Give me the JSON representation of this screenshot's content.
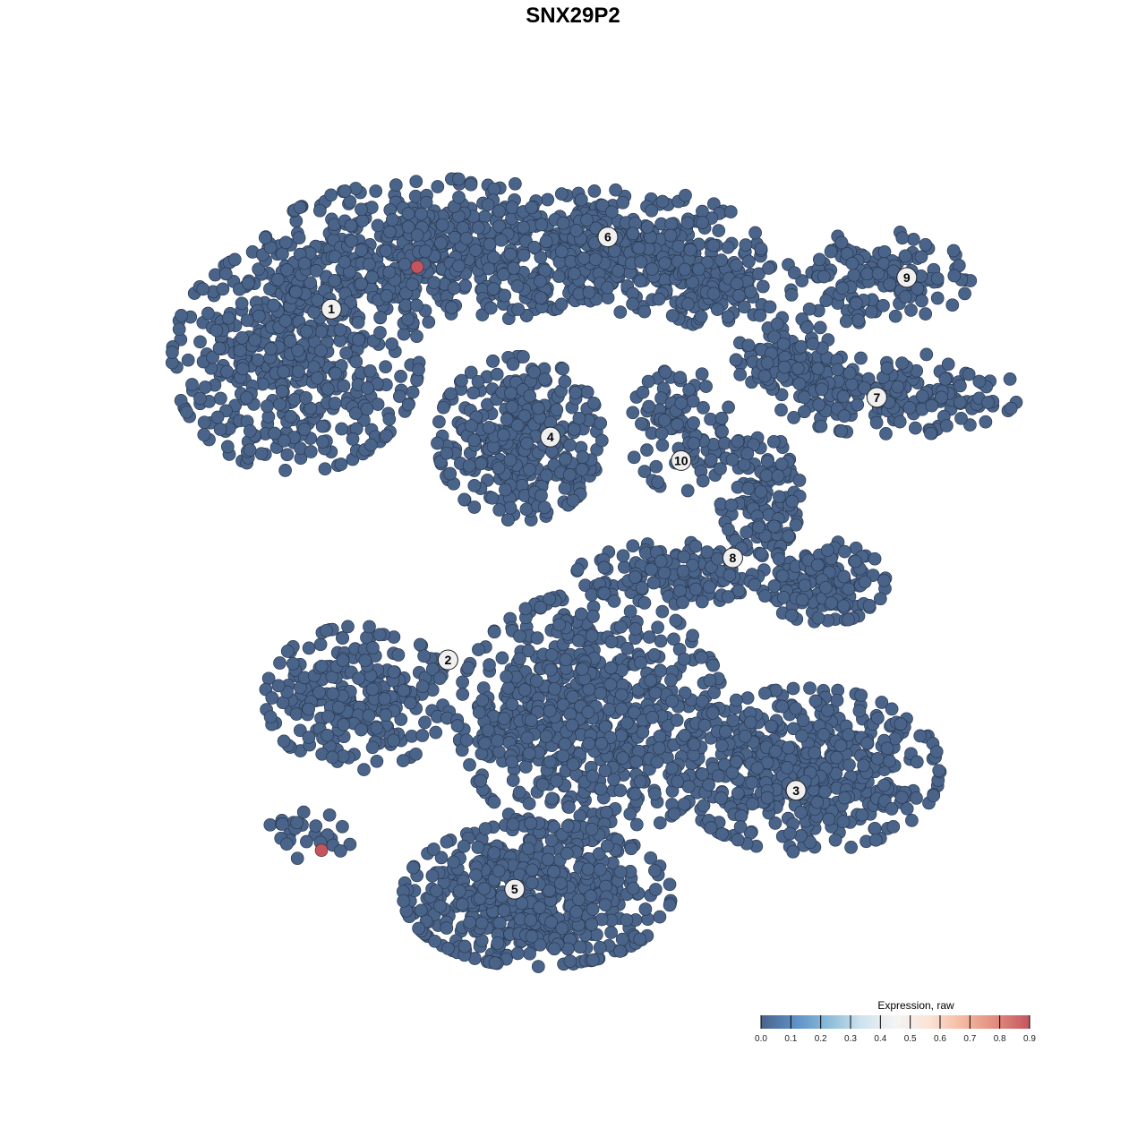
{
  "chart_data": {
    "type": "scatter",
    "title": "SNX29P2",
    "xlabel": "",
    "ylabel": "",
    "xlim": [
      -50,
      50
    ],
    "ylim": [
      -50,
      50
    ],
    "grid": false,
    "axes_visible": false,
    "point_color_low": "#4a6389",
    "point_color_high": "#c4555f",
    "clusters": [
      {
        "label": "1",
        "label_pos": [
          -31.7,
          32.3
        ]
      },
      {
        "label": "2",
        "label_pos": [
          -17.7,
          -11.0
        ]
      },
      {
        "label": "3",
        "label_pos": [
          24.1,
          -27.1
        ]
      },
      {
        "label": "4",
        "label_pos": [
          -5.4,
          16.5
        ]
      },
      {
        "label": "5",
        "label_pos": [
          -9.7,
          -39.3
        ]
      },
      {
        "label": "6",
        "label_pos": [
          1.5,
          41.2
        ]
      },
      {
        "label": "7",
        "label_pos": [
          33.8,
          21.4
        ]
      },
      {
        "label": "8",
        "label_pos": [
          16.5,
          1.6
        ]
      },
      {
        "label": "9",
        "label_pos": [
          37.4,
          36.2
        ]
      },
      {
        "label": "10",
        "label_pos": [
          10.3,
          13.6
        ]
      }
    ],
    "point_regions": [
      {
        "center": [
          -36,
          26.2
        ],
        "spread": [
          12.9,
          12.2
        ],
        "n": 500
      },
      {
        "center": [
          -17.7,
          39.5
        ],
        "spread": [
          19.4,
          7.7
        ],
        "n": 500
      },
      {
        "center": [
          3.8,
          39.5
        ],
        "spread": [
          14,
          6.6
        ],
        "n": 350
      },
      {
        "center": [
          14.5,
          35.1
        ],
        "spread": [
          6.5,
          4.4
        ],
        "n": 100
      },
      {
        "center": [
          -9.1,
          16.3
        ],
        "spread": [
          8.6,
          8.8
        ],
        "n": 350
      },
      {
        "center": [
          33.9,
          36.2
        ],
        "spread": [
          9.7,
          5
        ],
        "n": 150
      },
      {
        "center": [
          36,
          21.8
        ],
        "spread": [
          12.9,
          4.4
        ],
        "n": 200
      },
      {
        "center": [
          23.1,
          26.2
        ],
        "spread": [
          5.4,
          4.4
        ],
        "n": 100
      },
      {
        "center": [
          10.2,
          17.4
        ],
        "spread": [
          5.4,
          6.6
        ],
        "n": 100
      },
      {
        "center": [
          19.9,
          9.7
        ],
        "spread": [
          4.3,
          6.6
        ],
        "n": 120
      },
      {
        "center": [
          27.4,
          -1.4
        ],
        "spread": [
          6.5,
          4.4
        ],
        "n": 150
      },
      {
        "center": [
          10.2,
          -0.3
        ],
        "spread": [
          10.8,
          3.3
        ],
        "n": 150
      },
      {
        "center": [
          -28.5,
          -15.7
        ],
        "spread": [
          9.7,
          7.7
        ],
        "n": 250
      },
      {
        "center": [
          -0.5,
          -18
        ],
        "spread": [
          14,
          13.3
        ],
        "n": 700
      },
      {
        "center": [
          25.3,
          -24.6
        ],
        "spread": [
          14,
          8.8
        ],
        "n": 500
      },
      {
        "center": [
          -7,
          -40
        ],
        "spread": [
          14,
          7.7
        ],
        "n": 600
      },
      {
        "center": [
          -35,
          -32.3
        ],
        "spread": [
          5.4,
          2.8
        ],
        "n": 25
      }
    ],
    "expressing_points": [
      {
        "x": -21.4,
        "y": 37.5,
        "value": 0.9
      },
      {
        "x": -32.9,
        "y": -34.5,
        "value": 0.9
      }
    ],
    "legend": {
      "title": "Expression, raw",
      "position": "bottom-right",
      "range": [
        0,
        0.9
      ],
      "ticks": [
        "0.0",
        "0.1",
        "0.2",
        "0.3",
        "0.4",
        "0.5",
        "0.6",
        "0.7",
        "0.8",
        "0.9"
      ],
      "colors": [
        "#4a6389",
        "#5d8fc4",
        "#8bbbd9",
        "#cfe3ee",
        "#f4f4f4",
        "#fbe3d6",
        "#f5b9a0",
        "#e08b7e",
        "#c4555f"
      ]
    }
  }
}
